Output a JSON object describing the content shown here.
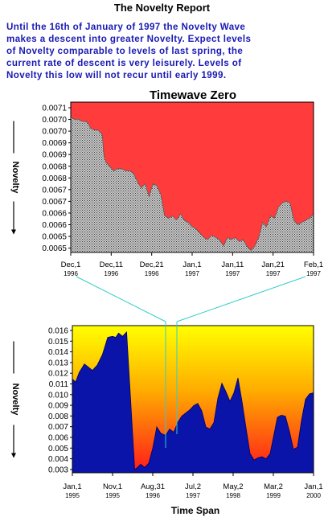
{
  "page": {
    "title": "The Novelty Report",
    "intro_lines": [
      "Until the 16th of January of 1997 the Novelty Wave",
      " makes a descent into greater Novelty.  Expect levels",
      "of Novelty comparable to levels of last spring, the",
      "current rate of descent is very leisurely.  Levels of",
      "Novelty this low will not recur until early 1999."
    ]
  },
  "colors": {
    "text_blue": "#1a1ab4",
    "top_fill": "#ff3b3b",
    "top_area": "#9a9a9a",
    "bottom_area": "#0a14a8",
    "gradient_top": "#ffff00",
    "gradient_bottom": "#ff2020",
    "connector": "#33cccc"
  },
  "chart_data": [
    {
      "type": "area",
      "title": "Timewave Zero",
      "ylabel": "Novelty",
      "ylim": [
        0.00645,
        0.00715
      ],
      "yticks": [
        "0.0071",
        "0.0070",
        "0.0070",
        "0.0069",
        "0.0069",
        "0.0068",
        "0.0068",
        "0.0067",
        "0.0067",
        "0.0066",
        "0.0066",
        "0.0065",
        "0.0065"
      ],
      "xticks": [
        {
          "label": "Dec,1",
          "year": "1996"
        },
        {
          "label": "Dec,11",
          "year": "1996"
        },
        {
          "label": "Dec,21",
          "year": "1996"
        },
        {
          "label": "Jan,1",
          "year": "1997"
        },
        {
          "label": "Jan,11",
          "year": "1997"
        },
        {
          "label": "Jan,21",
          "year": "1997"
        },
        {
          "label": "Feb,1",
          "year": "1997"
        }
      ],
      "x_range_days": [
        0,
        62
      ],
      "series": [
        {
          "x": [
            0,
            1,
            2,
            3,
            4,
            4.5,
            5,
            6,
            7,
            8,
            8.5,
            9,
            10,
            11,
            12,
            13,
            14,
            15,
            16,
            17,
            18,
            19,
            20,
            21,
            22,
            23,
            24,
            25,
            26,
            27,
            28,
            29,
            30,
            31,
            32,
            33,
            34,
            35,
            36,
            37,
            38,
            39,
            40,
            41,
            42,
            43,
            44,
            45,
            46,
            47,
            48,
            49,
            50,
            51,
            52,
            53,
            54,
            55,
            56,
            57,
            58,
            59,
            60,
            61,
            62
          ],
          "values": [
            0.00708,
            0.00707,
            0.00707,
            0.00706,
            0.00706,
            0.00705,
            0.00703,
            0.00702,
            0.00702,
            0.007,
            0.0069,
            0.00687,
            0.00685,
            0.00683,
            0.00684,
            0.00684,
            0.00683,
            0.00683,
            0.00682,
            0.00678,
            0.00675,
            0.00677,
            0.00671,
            0.00677,
            0.00676,
            0.00672,
            0.00662,
            0.00661,
            0.00662,
            0.0066,
            0.00663,
            0.0066,
            0.00659,
            0.00657,
            0.00656,
            0.00654,
            0.00652,
            0.00651,
            0.00653,
            0.00652,
            0.00651,
            0.00648,
            0.00652,
            0.00651,
            0.00652,
            0.0065,
            0.00651,
            0.00648,
            0.00646,
            0.00648,
            0.00652,
            0.00659,
            0.00657,
            0.00662,
            0.00661,
            0.00666,
            0.00668,
            0.00669,
            0.00668,
            0.0066,
            0.00658,
            0.00659,
            0.0066,
            0.00661,
            0.00663
          ]
        }
      ]
    },
    {
      "type": "area",
      "xlabel": "Time Span",
      "ylabel": "Novelty",
      "ylim": [
        0.0027,
        0.0165
      ],
      "yticks": [
        "0.016",
        "0.015",
        "0.014",
        "0.013",
        "0.012",
        "0.011",
        "0.010",
        "0.009",
        "0.008",
        "0.007",
        "0.006",
        "0.005",
        "0.004",
        "0.003"
      ],
      "xticks": [
        {
          "label": "Jan,1",
          "year": "1995"
        },
        {
          "label": "Nov,1",
          "year": "1995"
        },
        {
          "label": "Aug,31",
          "year": "1996"
        },
        {
          "label": "Jul,2",
          "year": "1997"
        },
        {
          "label": "May,2",
          "year": "1998"
        },
        {
          "label": "Mar,2",
          "year": "1999"
        },
        {
          "label": "Jan,1",
          "year": "2000"
        }
      ],
      "x_range": [
        0,
        6
      ],
      "series": [
        {
          "x": [
            0,
            0.08,
            0.17,
            0.3,
            0.4,
            0.5,
            0.62,
            0.75,
            0.88,
            1.0,
            1.08,
            1.15,
            1.25,
            1.35,
            1.45,
            1.55,
            1.62,
            1.7,
            1.8,
            1.9,
            2.0,
            2.1,
            2.2,
            2.32,
            2.42,
            2.52,
            2.62,
            2.72,
            2.82,
            2.92,
            3.02,
            3.12,
            3.22,
            3.32,
            3.42,
            3.52,
            3.62,
            3.72,
            3.82,
            3.92,
            4.02,
            4.12,
            4.22,
            4.32,
            4.42,
            4.52,
            4.62,
            4.72,
            4.82,
            4.92,
            5.0,
            5.1,
            5.2,
            5.3,
            5.4,
            5.5,
            5.6,
            5.7,
            5.8,
            5.9,
            6.0
          ],
          "values": [
            0.0115,
            0.0112,
            0.0121,
            0.0129,
            0.0126,
            0.0123,
            0.0128,
            0.0138,
            0.0154,
            0.0155,
            0.0154,
            0.0158,
            0.0155,
            0.0159,
            0.0095,
            0.003,
            0.0032,
            0.0035,
            0.0032,
            0.0036,
            0.005,
            0.007,
            0.0064,
            0.0062,
            0.0068,
            0.0065,
            0.0074,
            0.008,
            0.0083,
            0.0086,
            0.009,
            0.0092,
            0.0085,
            0.007,
            0.0068,
            0.0074,
            0.0097,
            0.0111,
            0.0103,
            0.0094,
            0.0102,
            0.0116,
            0.0094,
            0.0069,
            0.0045,
            0.0039,
            0.0041,
            0.0042,
            0.004,
            0.0045,
            0.006,
            0.0079,
            0.0081,
            0.008,
            0.0066,
            0.0049,
            0.0051,
            0.0076,
            0.0096,
            0.0101,
            0.0102
          ]
        }
      ]
    }
  ]
}
